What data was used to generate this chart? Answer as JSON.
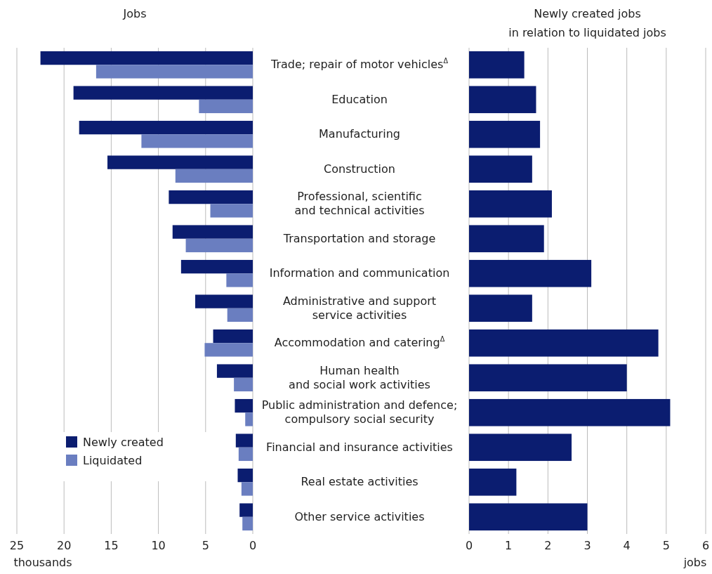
{
  "chart_data": [
    {
      "type": "bar",
      "orientation": "horizontal",
      "title": "Jobs",
      "xlabel": "thousands",
      "categories": [
        "Trade; repair of motor vehicles$^{Δ}$",
        "Education",
        "Manufacturing",
        "Construction",
        "Professional, scientific\nand technical activities",
        "Transportation and storage",
        "Information and communication",
        "Administrative and support\nservice activities",
        "Accommodation and catering$^{Δ}$",
        "Human health\nand social work activities",
        "Public administration and defence;\ncompulsory social security",
        "Financial and insurance activities",
        "Real estate activities",
        "Other service activities"
      ],
      "series": [
        {
          "name": "Newly created",
          "color": "#0b1d70",
          "values": [
            22.5,
            19.0,
            18.4,
            15.4,
            8.9,
            8.5,
            7.6,
            6.1,
            4.2,
            3.8,
            1.9,
            1.8,
            1.6,
            1.4
          ]
        },
        {
          "name": "Liquidated",
          "color": "#6a7ec0",
          "values": [
            16.6,
            5.7,
            11.8,
            8.2,
            4.5,
            7.1,
            2.8,
            2.7,
            5.1,
            2.0,
            0.8,
            1.5,
            1.2,
            1.1
          ]
        }
      ],
      "xlim": [
        25,
        0
      ],
      "xticks": [
        25,
        20,
        15,
        10,
        5,
        0
      ],
      "grid": "x",
      "legend": "bottom left"
    },
    {
      "type": "bar",
      "orientation": "horizontal",
      "title": "Newly created jobs\nin relation to liquidated jobs",
      "xlabel": "jobs",
      "color": "#0b1d70",
      "values": [
        1.4,
        1.7,
        1.8,
        1.6,
        2.1,
        1.9,
        3.1,
        1.6,
        4.8,
        4.0,
        5.1,
        2.6,
        1.2,
        3.0
      ],
      "xlim": [
        0,
        6
      ],
      "xticks": [
        0,
        1,
        2,
        3,
        4,
        5,
        6
      ],
      "grid": "x",
      "tick_labels": "x"
    }
  ]
}
